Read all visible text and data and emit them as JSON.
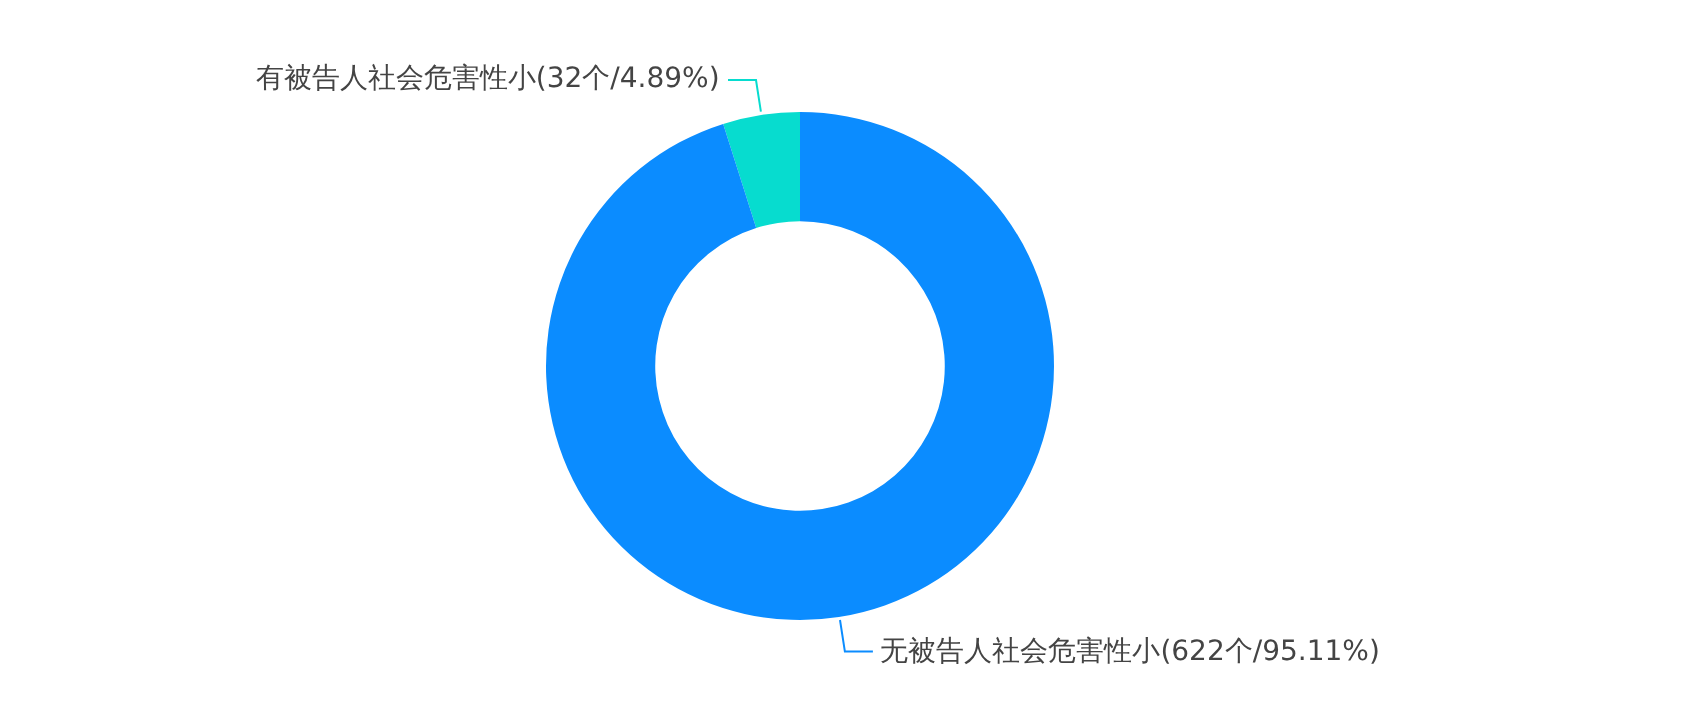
{
  "chart_data": {
    "type": "donut",
    "categories": [
      "有被告人社会危害性小(32个/4.89%)",
      "无被告人社会危害性小(622个/95.11%)"
    ],
    "values": [
      4.89,
      95.11
    ],
    "colors": [
      "#07dccf",
      "#0b8cff"
    ],
    "legend": false
  }
}
